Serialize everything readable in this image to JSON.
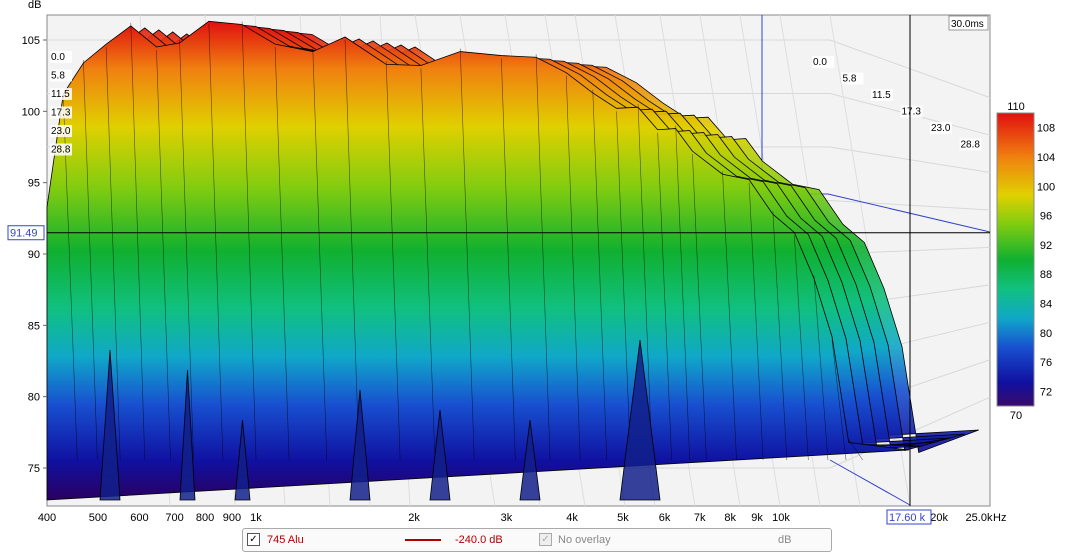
{
  "chart_data": {
    "type": "waterfall",
    "ylabel": "dB",
    "y_ticks": [
      "105",
      "100",
      "95",
      "90",
      "85",
      "80",
      "75"
    ],
    "ylim": [
      73,
      106.5
    ],
    "x_unit": "Hz",
    "x_ticks": [
      "400",
      "500",
      "600",
      "700",
      "800",
      "900",
      "1k",
      "2k",
      "3k",
      "4k",
      "5k",
      "6k",
      "7k",
      "8k",
      "9k",
      "10k",
      "20k",
      "25.0k"
    ],
    "xlim_hz": [
      400,
      25000
    ],
    "time_labels": [
      "0.0",
      "5.8",
      "11.5",
      "17.3",
      "23.0",
      "28.8"
    ],
    "time_span_label": "30.0ms",
    "cursor": {
      "y_label": "91.49",
      "x_label": "17.60 k",
      "y_db": 91.49,
      "x_hz": 17600
    },
    "colorbar": {
      "ticks": [
        "110",
        "108",
        "104",
        "100",
        "96",
        "92",
        "88",
        "84",
        "80",
        "76",
        "72",
        "70"
      ],
      "range": [
        70,
        110
      ]
    },
    "front_slice_db": [
      {
        "hz": 400,
        "db": 93.5
      },
      {
        "hz": 430,
        "db": 101
      },
      {
        "hz": 470,
        "db": 103.6
      },
      {
        "hz": 520,
        "db": 104.5
      },
      {
        "hz": 580,
        "db": 106.2
      },
      {
        "hz": 650,
        "db": 104.3
      },
      {
        "hz": 720,
        "db": 105.0
      },
      {
        "hz": 820,
        "db": 106.1
      },
      {
        "hz": 950,
        "db": 106.3
      },
      {
        "hz": 1100,
        "db": 104.5
      },
      {
        "hz": 1300,
        "db": 104.4
      },
      {
        "hz": 1500,
        "db": 105.0
      },
      {
        "hz": 1800,
        "db": 103.5
      },
      {
        "hz": 2100,
        "db": 103.0
      },
      {
        "hz": 2500,
        "db": 104.4
      },
      {
        "hz": 3000,
        "db": 103.7
      },
      {
        "hz": 3500,
        "db": 104.0
      },
      {
        "hz": 4000,
        "db": 102.5
      },
      {
        "hz": 4500,
        "db": 101.5
      },
      {
        "hz": 5000,
        "db": 100.0
      },
      {
        "hz": 5500,
        "db": 100.5
      },
      {
        "hz": 6000,
        "db": 98.5
      },
      {
        "hz": 6500,
        "db": 99.0
      },
      {
        "hz": 7000,
        "db": 97.0
      },
      {
        "hz": 8000,
        "db": 95.8
      },
      {
        "hz": 9000,
        "db": 95.0
      },
      {
        "hz": 10000,
        "db": 93.0
      },
      {
        "hz": 11000,
        "db": 91.3
      },
      {
        "hz": 12000,
        "db": 88.5
      },
      {
        "hz": 13000,
        "db": 84.0
      },
      {
        "hz": 14000,
        "db": 77.0
      }
    ]
  },
  "legend": {
    "series_name": "745 Alu",
    "series_color": "#b00000",
    "offset": "-240.0 dB",
    "overlay": "No overlay",
    "overlay_unit": "dB"
  }
}
